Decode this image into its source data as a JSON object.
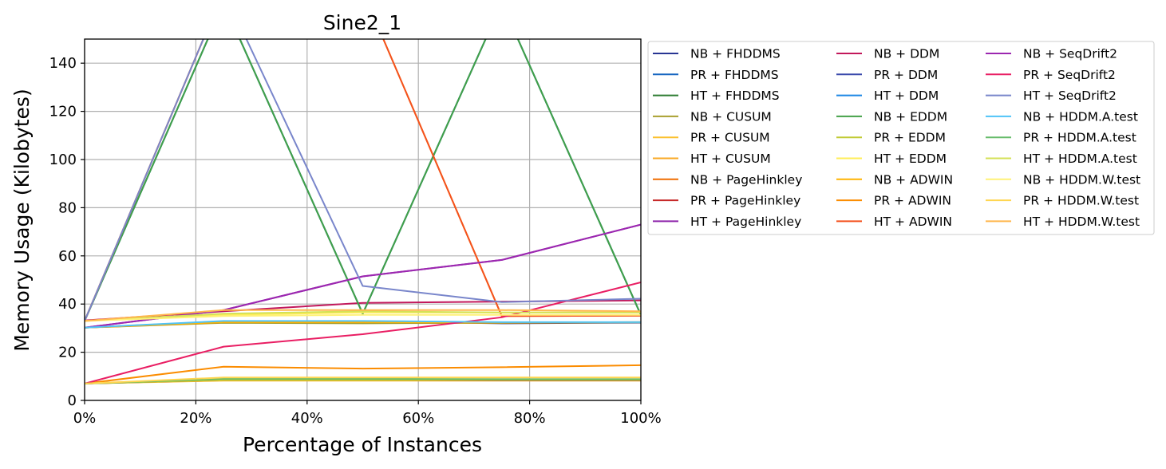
{
  "chart_data": {
    "type": "line",
    "title": "Sine2_1",
    "xlabel": "Percentage of Instances",
    "ylabel": "Memory Usage (Kilobytes)",
    "x": [
      0,
      25,
      50,
      75,
      100
    ],
    "xlim": [
      0,
      100
    ],
    "ylim": [
      0,
      150
    ],
    "xticks": [
      0,
      20,
      40,
      60,
      80,
      100
    ],
    "xtick_labels": [
      "0%",
      "20%",
      "40%",
      "60%",
      "80%",
      "100%"
    ],
    "yticks": [
      0,
      20,
      40,
      60,
      80,
      100,
      120,
      140
    ],
    "ytick_labels": [
      "0",
      "20",
      "40",
      "60",
      "80",
      "100",
      "120",
      "140"
    ],
    "grid": true,
    "legend_position": "outside-right",
    "legend_columns": 3,
    "series": [
      {
        "name": "NB + FHDDMS",
        "color": "#283593",
        "values": [
          30.2,
          32.8,
          32.8,
          32.0,
          32.3
        ]
      },
      {
        "name": "PR + FHDDMS",
        "color": "#1565c0",
        "values": [
          7.0,
          9.0,
          9.0,
          8.5,
          8.5
        ]
      },
      {
        "name": "HT + FHDDMS",
        "color": "#2e7d32",
        "values": [
          33.0,
          165.0,
          36.0,
          165.0,
          35.5
        ]
      },
      {
        "name": "NB + CUSUM",
        "color": "#a89f2e",
        "values": [
          30.2,
          32.2,
          32.0,
          32.2,
          32.4
        ]
      },
      {
        "name": "PR + CUSUM",
        "color": "#fbc02d",
        "values": [
          7.0,
          8.2,
          8.2,
          8.2,
          8.2
        ]
      },
      {
        "name": "HT + CUSUM",
        "color": "#f9a825",
        "values": [
          33.0,
          170.0,
          170.0,
          35.0,
          35.2
        ]
      },
      {
        "name": "NB + PageHinkley",
        "color": "#ef6c00",
        "values": [
          30.2,
          32.5,
          32.5,
          32.3,
          32.5
        ]
      },
      {
        "name": "PR + PageHinkley",
        "color": "#c62828",
        "values": [
          7.0,
          8.5,
          8.5,
          8.3,
          8.3
        ]
      },
      {
        "name": "HT + PageHinkley",
        "color": "#8e24aa",
        "values": [
          30.2,
          37.5,
          51.5,
          58.3,
          73.0
        ]
      },
      {
        "name": "NB + DDM",
        "color": "#c2185b",
        "values": [
          33.2,
          37.0,
          40.5,
          41.0,
          41.5
        ]
      },
      {
        "name": "PR + DDM",
        "color": "#3949ab",
        "values": [
          7.0,
          8.8,
          8.8,
          8.5,
          8.5
        ]
      },
      {
        "name": "HT + DDM",
        "color": "#1e88e5",
        "values": [
          33.0,
          165.0,
          36.0,
          165.0,
          35.5
        ]
      },
      {
        "name": "NB + EDDM",
        "color": "#43a047",
        "values": [
          33.0,
          165.0,
          36.0,
          165.0,
          35.5
        ]
      },
      {
        "name": "PR + EDDM",
        "color": "#c0ca33",
        "values": [
          7.0,
          8.5,
          8.5,
          8.5,
          8.5
        ]
      },
      {
        "name": "HT + EDDM",
        "color": "#ffee58",
        "values": [
          33.0,
          35.5,
          36.5,
          36.5,
          36.5
        ]
      },
      {
        "name": "NB + ADWIN",
        "color": "#ffb300",
        "values": [
          30.2,
          32.5,
          32.5,
          32.3,
          32.5
        ]
      },
      {
        "name": "PR + ADWIN",
        "color": "#fb8c00",
        "values": [
          7.0,
          14.0,
          13.2,
          13.8,
          14.6
        ]
      },
      {
        "name": "HT + ADWIN",
        "color": "#f4511e",
        "values": [
          33.0,
          170.0,
          170.0,
          35.0,
          35.2
        ]
      },
      {
        "name": "NB + SeqDrift2",
        "color": "#9c27b0",
        "values": [
          30.2,
          37.5,
          51.5,
          58.3,
          73.0
        ]
      },
      {
        "name": "PR + SeqDrift2",
        "color": "#e91e63",
        "values": [
          7.0,
          22.3,
          27.5,
          34.5,
          49.0
        ]
      },
      {
        "name": "HT + SeqDrift2",
        "color": "#7986cb",
        "values": [
          33.0,
          170.0,
          47.5,
          40.8,
          42.2
        ]
      },
      {
        "name": "NB + HDDM.A.test",
        "color": "#4fc3f7",
        "values": [
          30.2,
          33.0,
          33.0,
          32.5,
          32.5
        ]
      },
      {
        "name": "PR + HDDM.A.test",
        "color": "#66bb6a",
        "values": [
          7.0,
          9.0,
          9.0,
          8.8,
          8.8
        ]
      },
      {
        "name": "HT + HDDM.A.test",
        "color": "#d4e157",
        "values": [
          33.0,
          36.0,
          37.0,
          36.5,
          36.5
        ]
      },
      {
        "name": "NB + HDDM.W.test",
        "color": "#fff176",
        "values": [
          33.0,
          35.0,
          35.5,
          35.5,
          35.5
        ]
      },
      {
        "name": "PR + HDDM.W.test",
        "color": "#ffd54f",
        "values": [
          7.0,
          9.5,
          9.5,
          9.5,
          9.5
        ]
      },
      {
        "name": "HT + HDDM.W.test",
        "color": "#ffb74d",
        "values": [
          33.0,
          37.5,
          37.5,
          37.5,
          37.0
        ]
      }
    ]
  }
}
